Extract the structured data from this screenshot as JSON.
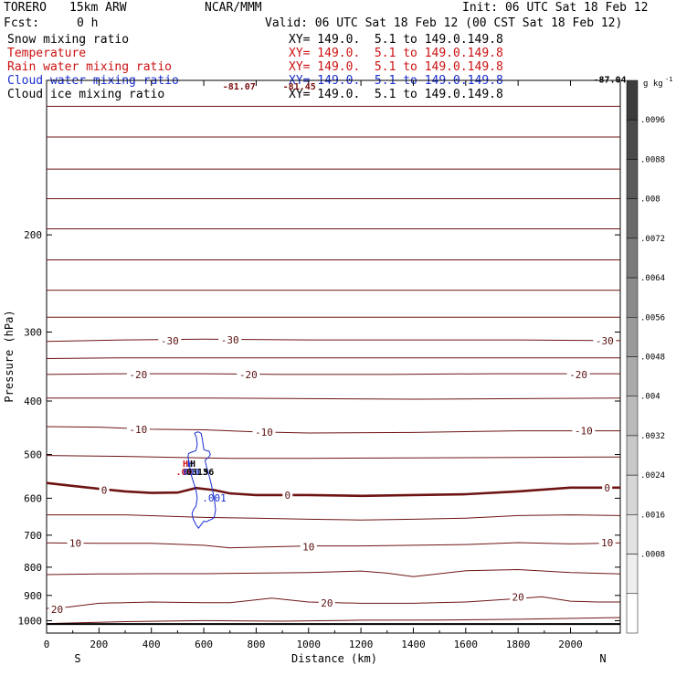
{
  "header": {
    "model": "TORERO",
    "resolution": "15km ARW",
    "center": "NCAR/MMM",
    "init": "Init: 06 UTC Sat 18 Feb 12",
    "fcst_label": "Fcst:",
    "fcst_value": "0 h",
    "valid": "Valid: 06 UTC Sat 18 Feb 12 (00 CST Sat 18 Feb 12)"
  },
  "fields": [
    {
      "name": "Snow mixing ratio",
      "xy": "XY= 149.0.  5.1 to 149.0.149.8",
      "color": "#000000"
    },
    {
      "name": "Temperature",
      "xy": "XY= 149.0.  5.1 to 149.0.149.8",
      "color": "#cc1111"
    },
    {
      "name": "Rain water mixing ratio",
      "xy": "XY= 149.0.  5.1 to 149.0.149.8",
      "color": "#cc1111"
    },
    {
      "name": "Cloud water mixing ratio",
      "xy": "XY= 149.0.  5.1 to 149.0.149.8",
      "color": "#1a2ed0"
    },
    {
      "name": "Cloud ice mixing ratio",
      "xy": "XY= 149.0.  5.1 to 149.0.149.8",
      "color": "#000000"
    }
  ],
  "chart_data": {
    "type": "line",
    "xlabel": "Distance (km)",
    "ylabel": "Pressure (hPa)",
    "xlim": [
      0,
      2190
    ],
    "ylim": [
      1053,
      105
    ],
    "y_scale": "log",
    "x_ticks": [
      "0",
      "200",
      "400",
      "600",
      "800",
      "1000",
      "1200",
      "1400",
      "1600",
      "1800",
      "2000"
    ],
    "y_ticks": [
      "200",
      "300",
      "400",
      "500",
      "600",
      "700",
      "800",
      "900",
      "1000"
    ],
    "end_labels": {
      "left": "S",
      "right": "N"
    },
    "isotherms": [
      {
        "label": "-30",
        "x": [
          0,
          300,
          600,
          1000,
          1400,
          1800,
          2190
        ],
        "y": [
          312,
          310,
          309,
          310,
          310,
          310,
          311
        ],
        "labels": [
          {
            "text": "-30",
            "x": 470,
            "y": 311
          },
          {
            "text": "-30",
            "x": 700,
            "y": 310
          },
          {
            "text": "-30",
            "x": 2130,
            "y": 311
          }
        ]
      },
      {
        "label": "-20",
        "x": [
          0,
          300,
          600,
          900,
          1300,
          1700,
          2190
        ],
        "y": [
          358,
          357,
          357,
          358,
          358,
          357,
          357
        ],
        "labels": [
          {
            "text": "-20",
            "x": 350,
            "y": 358
          },
          {
            "text": "-20",
            "x": 770,
            "y": 358
          },
          {
            "text": "-20",
            "x": 2030,
            "y": 358
          }
        ]
      },
      {
        "label": "-10",
        "x": [
          0,
          200,
          400,
          600,
          800,
          1000,
          1400,
          1800,
          2000,
          2190
        ],
        "y": [
          445,
          446,
          450,
          451,
          455,
          457,
          456,
          453,
          453,
          453
        ],
        "labels": [
          {
            "text": "-10",
            "x": 350,
            "y": 450
          },
          {
            "text": "-10",
            "x": 830,
            "y": 455
          },
          {
            "text": "-10",
            "x": 2050,
            "y": 453
          }
        ]
      },
      {
        "label": "0",
        "x": [
          0,
          100,
          200,
          300,
          400,
          500,
          570,
          640,
          700,
          800,
          1000,
          1200,
          1400,
          1600,
          1800,
          2000,
          2190
        ],
        "y": [
          563,
          570,
          577,
          583,
          587,
          586,
          575,
          580,
          588,
          592,
          592,
          594,
          592,
          590,
          583,
          574,
          574
        ],
        "labels": [
          {
            "text": "0",
            "x": 220,
            "y": 580
          },
          {
            "text": "0",
            "x": 920,
            "y": 592
          },
          {
            "text": "0",
            "x": 2140,
            "y": 574
          }
        ]
      },
      {
        "label": "10",
        "x": [
          0,
          200,
          400,
          600,
          700,
          800,
          1000,
          1200,
          1400,
          1600,
          1800,
          2000,
          2190
        ],
        "y": [
          723,
          724,
          724,
          730,
          738,
          736,
          732,
          732,
          730,
          728,
          722,
          726,
          723
        ],
        "labels": [
          {
            "text": "10",
            "x": 110,
            "y": 723
          },
          {
            "text": "10",
            "x": 1000,
            "y": 735
          },
          {
            "text": "10",
            "x": 2140,
            "y": 722
          }
        ]
      },
      {
        "label": "20",
        "x": [
          0,
          80,
          200,
          400,
          600,
          700,
          860,
          1000,
          1200,
          1400,
          1600,
          1800,
          1890,
          2000,
          2100,
          2190
        ],
        "y": [
          950,
          945,
          930,
          925,
          928,
          928,
          910,
          925,
          930,
          930,
          925,
          912,
          905,
          922,
          925,
          925
        ],
        "labels": [
          {
            "text": "20",
            "x": 40,
            "y": 953
          },
          {
            "text": "20",
            "x": 1070,
            "y": 928
          },
          {
            "text": "20",
            "x": 1800,
            "y": 905
          }
        ]
      }
    ],
    "other_contours": [
      {
        "x": [
          0,
          300,
          600,
          1000,
          1400,
          1800,
          2190
        ],
        "y": [
          117,
          117,
          117,
          117,
          117,
          117,
          117
        ]
      },
      {
        "x": [
          0,
          300,
          600,
          1000,
          1400,
          1800,
          2190
        ],
        "y": [
          133,
          133,
          133,
          133,
          133,
          133,
          133
        ]
      },
      {
        "x": [
          0,
          300,
          600,
          1000,
          1400,
          1800,
          2190
        ],
        "y": [
          152,
          152,
          152,
          152,
          152,
          152,
          152
        ]
      },
      {
        "x": [
          0,
          300,
          600,
          1000,
          1400,
          1800,
          2190
        ],
        "y": [
          172,
          172,
          172,
          172,
          172,
          172,
          172
        ]
      },
      {
        "x": [
          0,
          300,
          600,
          1000,
          1400,
          1800,
          2190
        ],
        "y": [
          195,
          195,
          195,
          195,
          195,
          195,
          195
        ]
      },
      {
        "x": [
          0,
          300,
          600,
          1000,
          1400,
          1800,
          2190
        ],
        "y": [
          222,
          222,
          222,
          222,
          222,
          222,
          222
        ]
      },
      {
        "x": [
          0,
          300,
          600,
          1000,
          1400,
          1800,
          2190
        ],
        "y": [
          252,
          252,
          252,
          252,
          252,
          252,
          252
        ]
      },
      {
        "x": [
          0,
          300,
          600,
          1000,
          1400,
          1800,
          2190
        ],
        "y": [
          282,
          282,
          282,
          282,
          282,
          282,
          282
        ]
      },
      {
        "x": [
          0,
          300,
          600,
          1000,
          1400,
          1800,
          2190
        ],
        "y": [
          335,
          334,
          334,
          334,
          334,
          334,
          334
        ]
      },
      {
        "x": [
          0,
          300,
          600,
          1000,
          1400,
          1800,
          2190
        ],
        "y": [
          395,
          395,
          395,
          396,
          397,
          396,
          395
        ]
      },
      {
        "x": [
          0,
          300,
          500,
          700,
          1000,
          1400,
          1800,
          2190
        ],
        "y": [
          502,
          504,
          506,
          508,
          508,
          507,
          506,
          505
        ]
      },
      {
        "x": [
          0,
          300,
          600,
          800,
          1000,
          1200,
          1400,
          1600,
          1800,
          2000,
          2190
        ],
        "y": [
          643,
          643,
          650,
          652,
          655,
          657,
          655,
          652,
          645,
          643,
          645
        ]
      },
      {
        "x": [
          0,
          200,
          400,
          600,
          800,
          1000,
          1200,
          1300,
          1400,
          1600,
          1800,
          2000,
          2190
        ],
        "y": [
          825,
          823,
          822,
          822,
          820,
          818,
          813,
          820,
          832,
          812,
          808,
          818,
          823
        ]
      },
      {
        "x": [
          0,
          300,
          600,
          900,
          1200,
          1500,
          1800,
          2190
        ],
        "y": [
          1012,
          1004,
          1000,
          1002,
          998,
          997,
          994,
          987
        ]
      },
      {
        "x": [
          0,
          2190
        ],
        "y": [
          1014,
          1014
        ]
      }
    ],
    "cloud_water": {
      "x": [
        580,
        590,
        595,
        600,
        610,
        620,
        625,
        620,
        605,
        610,
        620,
        630,
        640,
        645,
        640,
        630,
        620,
        610,
        600,
        590,
        580,
        570,
        560,
        555,
        560,
        570,
        575,
        570,
        560,
        550,
        545,
        540,
        542,
        550,
        560,
        570,
        575,
        572,
        565,
        570,
        580
      ],
      "y": [
        455,
        458,
        470,
        490,
        492,
        493,
        500,
        505,
        512,
        525,
        545,
        570,
        600,
        630,
        650,
        655,
        658,
        662,
        660,
        670,
        680,
        670,
        655,
        640,
        630,
        620,
        600,
        580,
        560,
        540,
        520,
        505,
        498,
        496,
        494,
        492,
        480,
        465,
        458,
        456,
        455
      ],
      "label": ".001"
    },
    "value_labels": [
      {
        "text": "H",
        "color": "#cc1111",
        "x": 530,
        "y": 526
      },
      {
        "text": "H",
        "color": "#1a2ed0",
        "x": 548,
        "y": 526
      },
      {
        "text": "H",
        "color": "#000000",
        "x": 558,
        "y": 526
      },
      {
        "text": ".00",
        "color": "#cc1111",
        "x": 525,
        "y": 545
      },
      {
        "text": "000",
        "color": "#1a2ed0",
        "x": 553,
        "y": 545
      },
      {
        "text": "0313",
        "color": "#000000",
        "x": 575,
        "y": 545
      },
      {
        "text": "56",
        "color": "#000000",
        "x": 618,
        "y": 545
      },
      {
        "text": "-81.07",
        "color": "#7a1010",
        "x": 735,
        "y": 109
      },
      {
        "text": "-81.45",
        "color": "#7a1010",
        "x": 965,
        "y": 109
      },
      {
        "text": "-87.04",
        "color": "#000000",
        "x": 2150,
        "y": 106
      }
    ]
  },
  "colorbar": {
    "unit": "g kg",
    "unit_exp": "-1",
    "ticks": [
      ".0096",
      ".0088",
      ".008",
      ".0072",
      ".0064",
      ".0056",
      ".0048",
      ".004",
      ".0032",
      ".0024",
      ".0016",
      ".0008"
    ],
    "colors": [
      "#3c3c3c",
      "#4a4a4a",
      "#5a5a5a",
      "#6a6a6a",
      "#7a7a7a",
      "#8a8a8a",
      "#9a9a9a",
      "#aaaaaa",
      "#bababa",
      "#c8c8c8",
      "#d6d6d6",
      "#e2e2e2",
      "#eeeeee",
      "#ffffff"
    ]
  }
}
